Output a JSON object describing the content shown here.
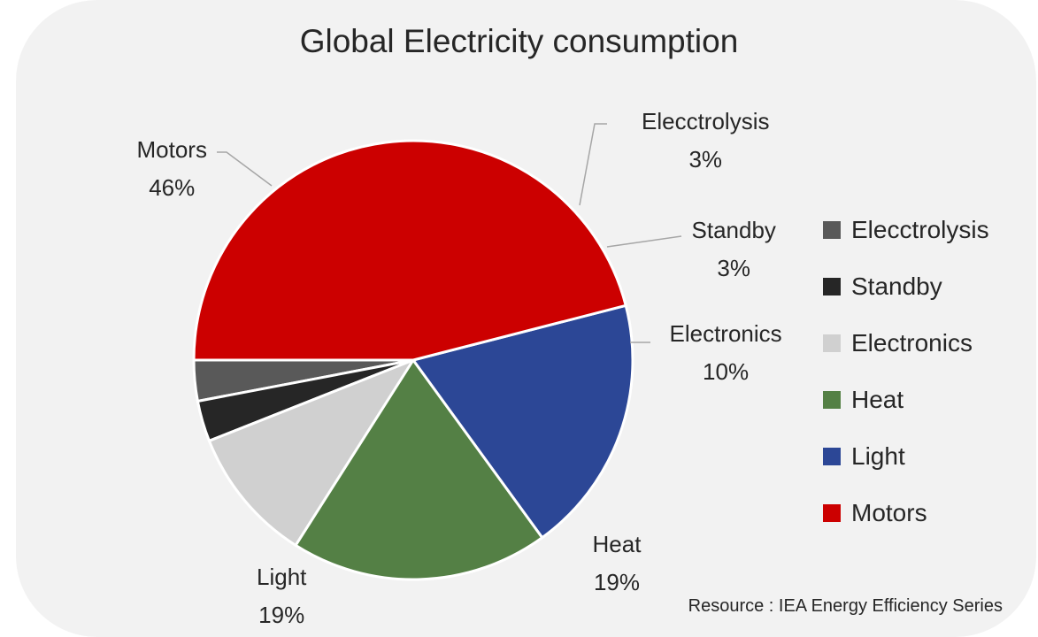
{
  "chart_data": {
    "type": "pie",
    "title": "Global Electricity consumption",
    "slices": [
      {
        "label": "Elecctrolysis",
        "value": 3,
        "value_label": "3%",
        "color": "#595959"
      },
      {
        "label": "Standby",
        "value": 3,
        "value_label": "3%",
        "color": "#262626"
      },
      {
        "label": "Electronics",
        "value": 10,
        "value_label": "10%",
        "color": "#d0d0d0"
      },
      {
        "label": "Heat",
        "value": 19,
        "value_label": "19%",
        "color": "#548045"
      },
      {
        "label": "Light",
        "value": 19,
        "value_label": "19%",
        "color": "#2c4796"
      },
      {
        "label": "Motors",
        "value": 46,
        "value_label": "46%",
        "color": "#cc0000"
      }
    ],
    "legend_position": "right",
    "start_angle_deg": 180,
    "direction": "counterclockwise"
  },
  "footer": {
    "source": "Resource : IEA Energy Efficiency Series"
  }
}
